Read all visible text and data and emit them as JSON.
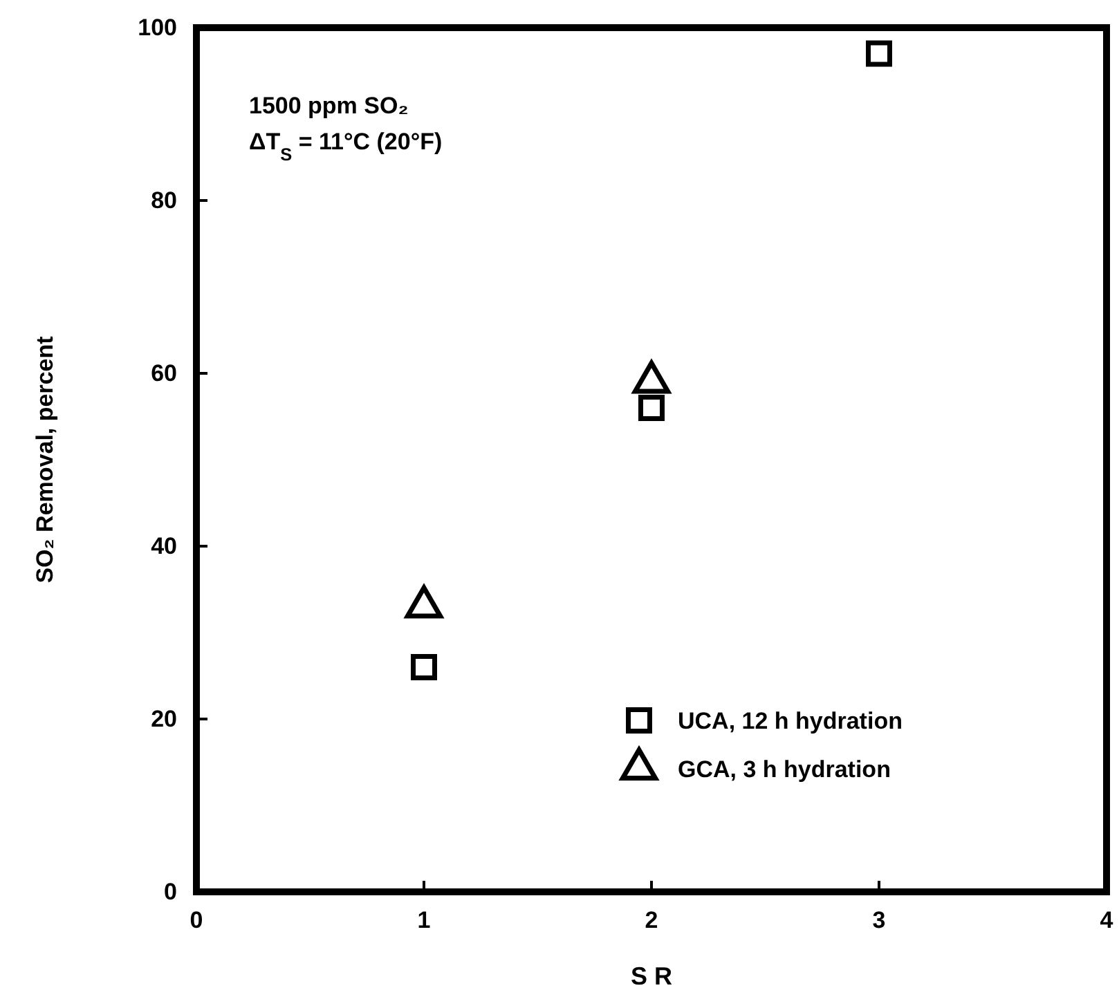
{
  "chart_data": {
    "type": "scatter",
    "xlabel": "S R",
    "ylabel": "SO₂ Removal, percent",
    "xlim": [
      0,
      4
    ],
    "xticks": [
      0,
      1,
      2,
      3,
      4
    ],
    "ylim": [
      0,
      100
    ],
    "yticks": [
      0,
      20,
      40,
      60,
      80,
      100
    ],
    "grid": false,
    "legend": "bottom right",
    "annotations": [
      "1500 ppm SO₂",
      "ΔT$_{S}$ = 11°C (20°F)"
    ],
    "series": [
      {
        "name": "UCA, 12 h hydration",
        "color": "#000000",
        "marker": "square",
        "x": [
          1,
          2,
          3
        ],
        "values": [
          26,
          56,
          97
        ]
      },
      {
        "name": "GCA, 3 h hydration",
        "color": "#000000",
        "marker": "triangle",
        "x": [
          1,
          2
        ],
        "values": [
          33,
          59
        ]
      }
    ]
  }
}
